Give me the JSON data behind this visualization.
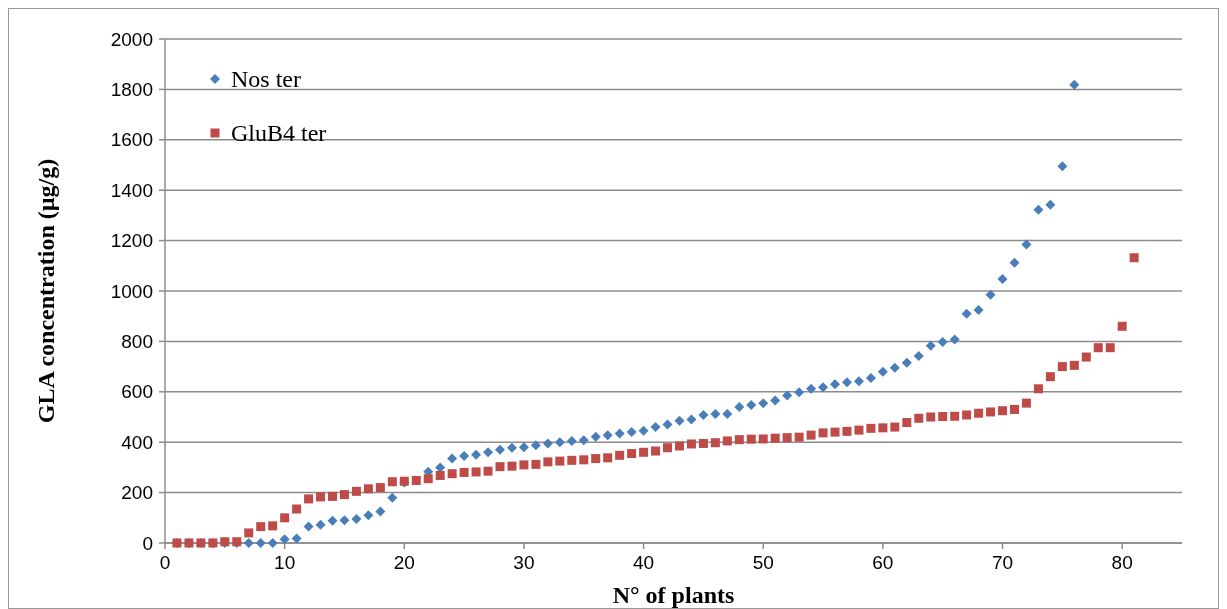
{
  "chart_data": {
    "type": "scatter",
    "xlabel": "N° of plants",
    "ylabel": "GLA concentration (µg/g)",
    "xlim": [
      0,
      85
    ],
    "xticks": [
      0,
      10,
      20,
      30,
      40,
      50,
      60,
      70,
      80
    ],
    "ylim": [
      0,
      2000
    ],
    "yticks": [
      0,
      200,
      400,
      600,
      800,
      1000,
      1200,
      1400,
      1600,
      1800,
      2000
    ],
    "grid": "y",
    "legend": "top left",
    "series": [
      {
        "name": "Nos ter",
        "color": "#4a7ebb",
        "marker": "diamond",
        "x": [
          1,
          2,
          3,
          4,
          5,
          6,
          7,
          8,
          9,
          10,
          11,
          12,
          13,
          14,
          15,
          16,
          17,
          18,
          19,
          20,
          22,
          23,
          24,
          25,
          26,
          27,
          28,
          29,
          30,
          31,
          32,
          33,
          34,
          35,
          36,
          37,
          38,
          39,
          40,
          41,
          42,
          43,
          44,
          45,
          46,
          47,
          48,
          49,
          50,
          51,
          52,
          53,
          54,
          55,
          56,
          57,
          58,
          59,
          60,
          61,
          62,
          63,
          64,
          65,
          66,
          67,
          68,
          69,
          70,
          71,
          72,
          73,
          74,
          75,
          76
        ],
        "values": [
          0,
          0,
          0,
          0,
          0,
          0,
          0,
          0,
          0,
          15,
          18,
          65,
          72,
          88,
          90,
          95,
          110,
          125,
          180,
          240,
          283,
          300,
          335,
          345,
          350,
          360,
          370,
          378,
          380,
          388,
          395,
          400,
          405,
          408,
          422,
          428,
          435,
          440,
          445,
          460,
          470,
          485,
          490,
          508,
          512,
          512,
          540,
          548,
          555,
          565,
          585,
          598,
          612,
          618,
          630,
          638,
          642,
          655,
          680,
          695,
          715,
          742,
          783,
          798,
          808,
          910,
          925,
          985,
          1048,
          1112,
          1185,
          1322,
          1342,
          1495,
          1818
        ]
      },
      {
        "name": "GluB4 ter",
        "color": "#be4b48",
        "marker": "square",
        "x": [
          1,
          2,
          3,
          4,
          5,
          6,
          7,
          8,
          9,
          10,
          11,
          12,
          13,
          14,
          15,
          16,
          17,
          18,
          19,
          20,
          21,
          22,
          23,
          24,
          25,
          26,
          27,
          28,
          29,
          30,
          31,
          32,
          33,
          34,
          35,
          36,
          37,
          38,
          39,
          40,
          41,
          42,
          43,
          44,
          45,
          46,
          47,
          48,
          49,
          50,
          51,
          52,
          53,
          54,
          55,
          56,
          57,
          58,
          59,
          60,
          61,
          62,
          63,
          64,
          65,
          66,
          67,
          68,
          69,
          70,
          71,
          72,
          73,
          74,
          75,
          76,
          77,
          78,
          79,
          80,
          81
        ],
        "values": [
          0,
          0,
          0,
          0,
          5,
          5,
          40,
          65,
          68,
          100,
          135,
          175,
          183,
          185,
          192,
          205,
          215,
          220,
          243,
          245,
          248,
          255,
          268,
          275,
          280,
          282,
          285,
          303,
          305,
          310,
          312,
          322,
          325,
          328,
          330,
          335,
          338,
          348,
          355,
          360,
          365,
          378,
          385,
          393,
          395,
          398,
          405,
          410,
          412,
          413,
          416,
          418,
          420,
          428,
          437,
          440,
          443,
          448,
          455,
          457,
          460,
          478,
          495,
          500,
          502,
          503,
          508,
          515,
          520,
          525,
          530,
          555,
          612,
          660,
          700,
          705,
          738,
          775,
          775,
          860,
          1132
        ]
      }
    ]
  }
}
